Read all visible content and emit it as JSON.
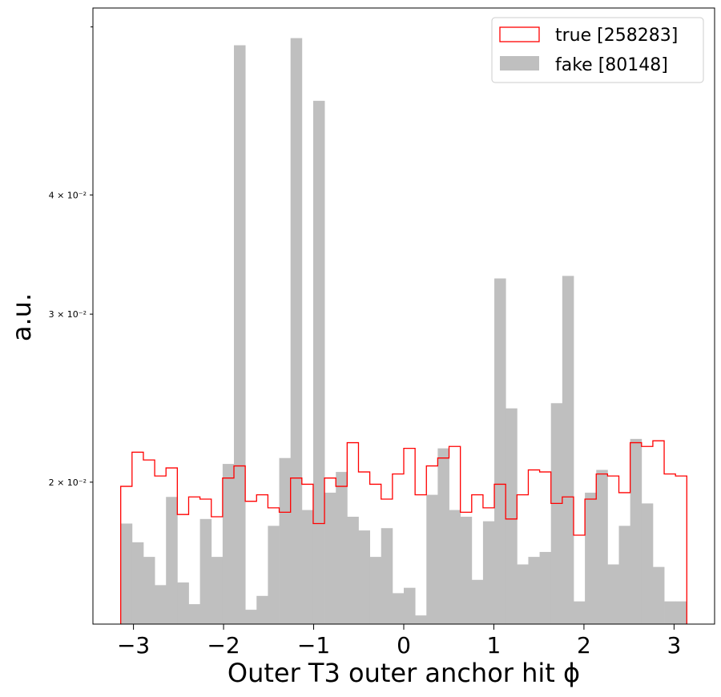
{
  "chart_data": {
    "type": "histogram",
    "xlabel": "Outer T3 outer anchor hit ϕ",
    "ylabel": "a.u.",
    "xlim": [
      -3.45,
      3.45
    ],
    "ylim": [
      0.0142,
      0.0628
    ],
    "yscale": "log",
    "x_ticks": [
      -3,
      -2,
      -1,
      0,
      1,
      2,
      3
    ],
    "x_tick_labels": [
      "−3",
      "−2",
      "−1",
      "0",
      "1",
      "2",
      "3"
    ],
    "y_ticks": [
      0.02,
      0.03,
      0.04
    ],
    "y_tick_labels": [
      "2 × 10⁻²",
      "3 × 10⁻²",
      "4 × 10⁻²"
    ],
    "y_minor_ticks": [
      0.06
    ],
    "bins": {
      "min": -3.1416,
      "max": 3.1416,
      "count": 50
    },
    "legend_position": "top-right",
    "series": [
      {
        "name": "true [258283]",
        "style": "step",
        "color": "#ff0000",
        "values": [
          0.0198,
          0.0215,
          0.0211,
          0.0203,
          0.0207,
          0.0185,
          0.0193,
          0.0192,
          0.0184,
          0.0202,
          0.0208,
          0.0191,
          0.0194,
          0.0188,
          0.0186,
          0.0202,
          0.0199,
          0.0181,
          0.0202,
          0.0198,
          0.022,
          0.0205,
          0.0199,
          0.0192,
          0.0204,
          0.0217,
          0.0194,
          0.0208,
          0.0212,
          0.0218,
          0.0186,
          0.0194,
          0.0188,
          0.0199,
          0.0183,
          0.0194,
          0.0206,
          0.0205,
          0.019,
          0.0193,
          0.0176,
          0.0192,
          0.0204,
          0.0203,
          0.0195,
          0.022,
          0.0218,
          0.0221,
          0.0204,
          0.0203
        ]
      },
      {
        "name": "fake [80148]",
        "style": "filled",
        "color": "#bfbfbf",
        "values": [
          0.0181,
          0.0173,
          0.0167,
          0.0156,
          0.0193,
          0.0157,
          0.0149,
          0.0183,
          0.0167,
          0.0209,
          0.0574,
          0.0147,
          0.0152,
          0.018,
          0.0212,
          0.0584,
          0.0187,
          0.0502,
          0.0195,
          0.0205,
          0.0184,
          0.0178,
          0.0167,
          0.0179,
          0.0153,
          0.0155,
          0.0145,
          0.0194,
          0.0217,
          0.0187,
          0.0184,
          0.0158,
          0.0182,
          0.0327,
          0.0239,
          0.0164,
          0.0167,
          0.0169,
          0.0242,
          0.0329,
          0.015,
          0.0195,
          0.0206,
          0.0164,
          0.018,
          0.0222,
          0.019,
          0.0163,
          0.015,
          0.015
        ]
      }
    ]
  }
}
